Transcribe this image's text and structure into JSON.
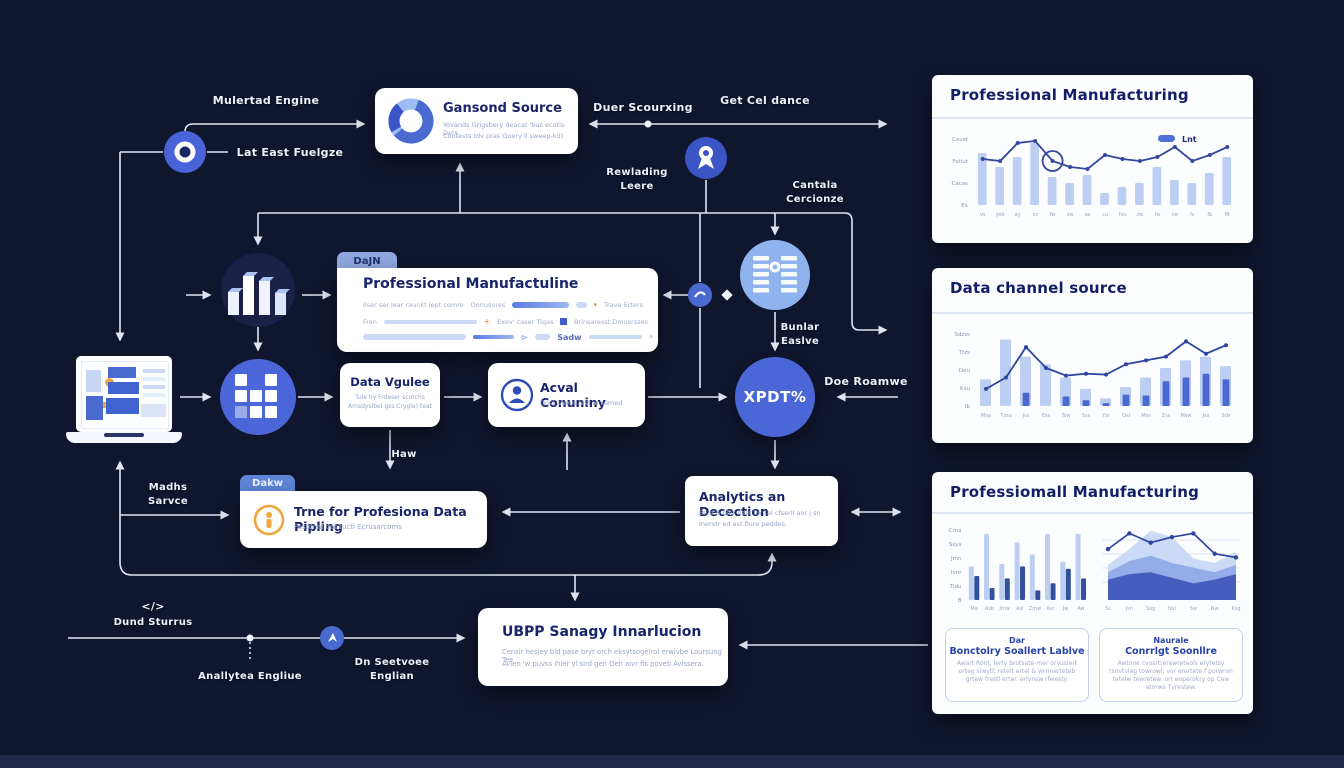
{
  "colors": {
    "bg": "#10162e",
    "card": "#ffffff",
    "accent": "#4b66d6",
    "light_bar": "#bccff3",
    "mid_bar": "#4a68d0",
    "line": "#33489e",
    "navy_text": "#18256b",
    "label_text": "#eef2fc",
    "orange": "#f0a53a",
    "tab_blue": "#87a4e4"
  },
  "flow": {
    "labels": {
      "material_engine": "Mulertad Engine",
      "last_east_analyze": "Lat East Fuelgze",
      "data_sourcing": "Duer Scourxing",
      "get_guidance": "Get Cel dance",
      "rewarding_1": "Rewlading",
      "rewarding_2": "Leere",
      "controls_1": "Cantala",
      "controls_2": "Cercionze",
      "bunlar_1": "Bunlar",
      "bunlar_2": "Easlve",
      "data_resource": "Doe Roamwe",
      "haw": "Haw",
      "marks_1": "Madhs",
      "marks_2": "Sarvce",
      "data_source_bottom": "Dund Sturrus",
      "code_glyph": "</>",
      "analytics_engine": "Anallytea Engliue",
      "services_1": "Dn Seetvoee",
      "services_2": "Englian",
      "xpdt": "XPDT%"
    },
    "channel_card": {
      "title": "Gansond Source",
      "line1": "Yovands Grigsbery deacat 'bas ecotis- Dets",
      "line2": "Cootests tdv pras Guery li sweep-kd)"
    },
    "manu_card": {
      "tab": "DaJN",
      "title": "Professional Manufactuline",
      "r1a": "Ilser ser lear raunkt lept comre",
      "r1b": "Donusores",
      "r1c": "Trave Erters",
      "r2a": "Fren",
      "r2b": "Exev' caser Tiqas",
      "r2c": "Brinsaresst Dmusrsses",
      "r3a": "Sadw"
    },
    "data_engine_card": {
      "title": "Data Vgulee",
      "line1": "Tule by Frdeser scotchs",
      "line2": "Amsdysibel gss Crygle) teat"
    },
    "community_card": {
      "title": "Acval Conuniny",
      "line1": "Dosl islarm rest al samed"
    },
    "pipeline_card": {
      "tab": "Dakw",
      "title": "Trne for Profesiona Data Pipling",
      "subtitle": "Festonal bat tuctl Ecrusarcoms"
    },
    "analytics_card": {
      "title": "Analytics an Decection",
      "line1": "Etve & bler hest for tel cfserll aor j sn",
      "line2": "Inerstr ed ast flure peddes."
    },
    "ubpp_card": {
      "title": "UBPP Sanagy Innarlucion",
      "line1": "Censir hesjey bld pase bryr orch eksytsogelrol erwivbe Loursung Tee",
      "line2": "Avlen 'w puvss ihler yl sird gen Oeh aivr fis poveb Avissera."
    }
  },
  "panels": {
    "p1": {
      "title": "Professional Manufacturing",
      "legend": "Lnt"
    },
    "p2": {
      "title": "Data channel source"
    },
    "p3": {
      "title": "Professiomall Manufacturing",
      "card1": {
        "title1": "Dar",
        "title2": "Bonctolry Soallert Lablve",
        "body": "Awart Ront, lerty brotsate-mer orvuslert orteg siwytl; reteit ertel & wrrinerteteb grtew frestl erter. erlynsw rfwesty."
      },
      "card2": {
        "title1": "Naurale",
        "title2": "Conrrlgt Soonllre",
        "body": "Awtone cvosrtrerewreteols erytetsy rsovtvlag towrowl; vor erertete f porwron tetelw tewretew. orr eoperokry op Cew atorws Tvrestew."
      }
    }
  },
  "chart_data": [
    {
      "type": "bar",
      "title": "Professional Manufacturing",
      "legend": "Lnt",
      "ylim": [
        0,
        70
      ],
      "y_ticks": [
        "Cavet",
        "Fetiut",
        "Cacas",
        "Ex"
      ],
      "x": [
        "vs",
        "ysb",
        "ay",
        "cs",
        "fw",
        "sw",
        "as",
        "cu",
        "fvo",
        "zw",
        "fw",
        "cw",
        "fs",
        "fb",
        "fft"
      ],
      "series": [
        {
          "name": "bars",
          "values": [
            52,
            38,
            48,
            62,
            28,
            22,
            30,
            12,
            18,
            22,
            38,
            25,
            22,
            32,
            48
          ]
        },
        {
          "name": "line",
          "values": [
            46,
            44,
            62,
            64,
            44,
            38,
            36,
            50,
            46,
            44,
            48,
            58,
            44,
            50,
            58
          ]
        }
      ],
      "highlight_index": 4,
      "legend_position": "top-right",
      "grid": false
    },
    {
      "type": "bar",
      "title": "Data channel source",
      "ylim": [
        0,
        80
      ],
      "y_ticks": [
        "Sdzss",
        "Ttzs",
        "Deu",
        "Ksu",
        "Ib"
      ],
      "x": [
        "Msa",
        "Tzso",
        "Jss",
        "Ess",
        "Tsw",
        "Sss",
        "Ysr",
        "Osl",
        "Mss",
        "Zss",
        "Msw",
        "Jss",
        "Sds"
      ],
      "series": [
        {
          "name": "back_bars",
          "values": [
            28,
            70,
            52,
            44,
            30,
            18,
            8,
            20,
            30,
            40,
            48,
            52,
            42
          ]
        },
        {
          "name": "front_bars",
          "values": [
            0,
            0,
            14,
            0,
            10,
            6,
            3,
            12,
            11,
            26,
            30,
            34,
            28
          ]
        },
        {
          "name": "line",
          "values": [
            18,
            30,
            62,
            40,
            32,
            34,
            33,
            44,
            48,
            52,
            68,
            55,
            64
          ]
        }
      ],
      "grid": false
    },
    {
      "type": "bar",
      "title": "Professiomall Manufacturing (left)",
      "ylim": [
        0,
        60
      ],
      "y_ticks": [
        "Cma",
        "Ssys",
        "Jmn",
        "Ivnr",
        "Tidu",
        "B"
      ],
      "x": [
        "Ma",
        "Asb",
        "Jmw",
        "Asl",
        "Zmw",
        "Asr",
        "Jw",
        "Aw"
      ],
      "series": [
        {
          "name": "light",
          "values": [
            28,
            55,
            30,
            48,
            38,
            55,
            32,
            55
          ]
        },
        {
          "name": "dark",
          "values": [
            20,
            10,
            18,
            28,
            8,
            14,
            26,
            18
          ]
        }
      ],
      "grid": false
    },
    {
      "type": "area",
      "title": "Professiomall Manufacturing (right)",
      "ylim": [
        0,
        80
      ],
      "x": [
        "Ss",
        "Jsn",
        "Ssg",
        "Nsl",
        "Sw",
        "Nw",
        "Ksg"
      ],
      "series": [
        {
          "name": "area_light",
          "values": [
            38,
            55,
            75,
            68,
            45,
            40,
            52
          ]
        },
        {
          "name": "area_mid",
          "values": [
            30,
            42,
            48,
            40,
            35,
            30,
            38
          ]
        },
        {
          "name": "area_dark",
          "values": [
            22,
            28,
            30,
            24,
            18,
            22,
            28
          ]
        },
        {
          "name": "line",
          "values": [
            55,
            72,
            62,
            68,
            72,
            50,
            46
          ]
        }
      ],
      "grid": true
    }
  ]
}
